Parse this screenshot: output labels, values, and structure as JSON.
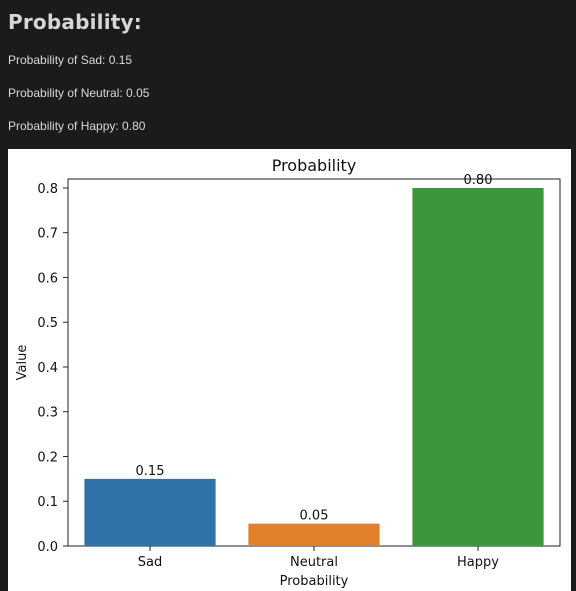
{
  "app": {
    "title": "Probability:"
  },
  "summary": {
    "lines": [
      "Probability of Sad: 0.15",
      "Probability of Neutral: 0.05",
      "Probability of Happy: 0.80"
    ]
  },
  "chart_data": {
    "type": "bar",
    "title": "Probability",
    "xlabel": "Probability",
    "ylabel": "Value",
    "categories": [
      "Sad",
      "Neutral",
      "Happy"
    ],
    "values": [
      0.15,
      0.05,
      0.8
    ],
    "value_labels": [
      "0.15",
      "0.05",
      "0.80"
    ],
    "ylim": [
      0,
      0.82
    ],
    "yticks": [
      0.0,
      0.1,
      0.2,
      0.3,
      0.4,
      0.5,
      0.6,
      0.7,
      0.8
    ],
    "ytick_labels": [
      "0.0",
      "0.1",
      "0.2",
      "0.3",
      "0.4",
      "0.5",
      "0.6",
      "0.7",
      "0.8"
    ],
    "colors": [
      "#2f73aa",
      "#e27f2a",
      "#3b963c"
    ],
    "grid": false,
    "legend": "none"
  }
}
